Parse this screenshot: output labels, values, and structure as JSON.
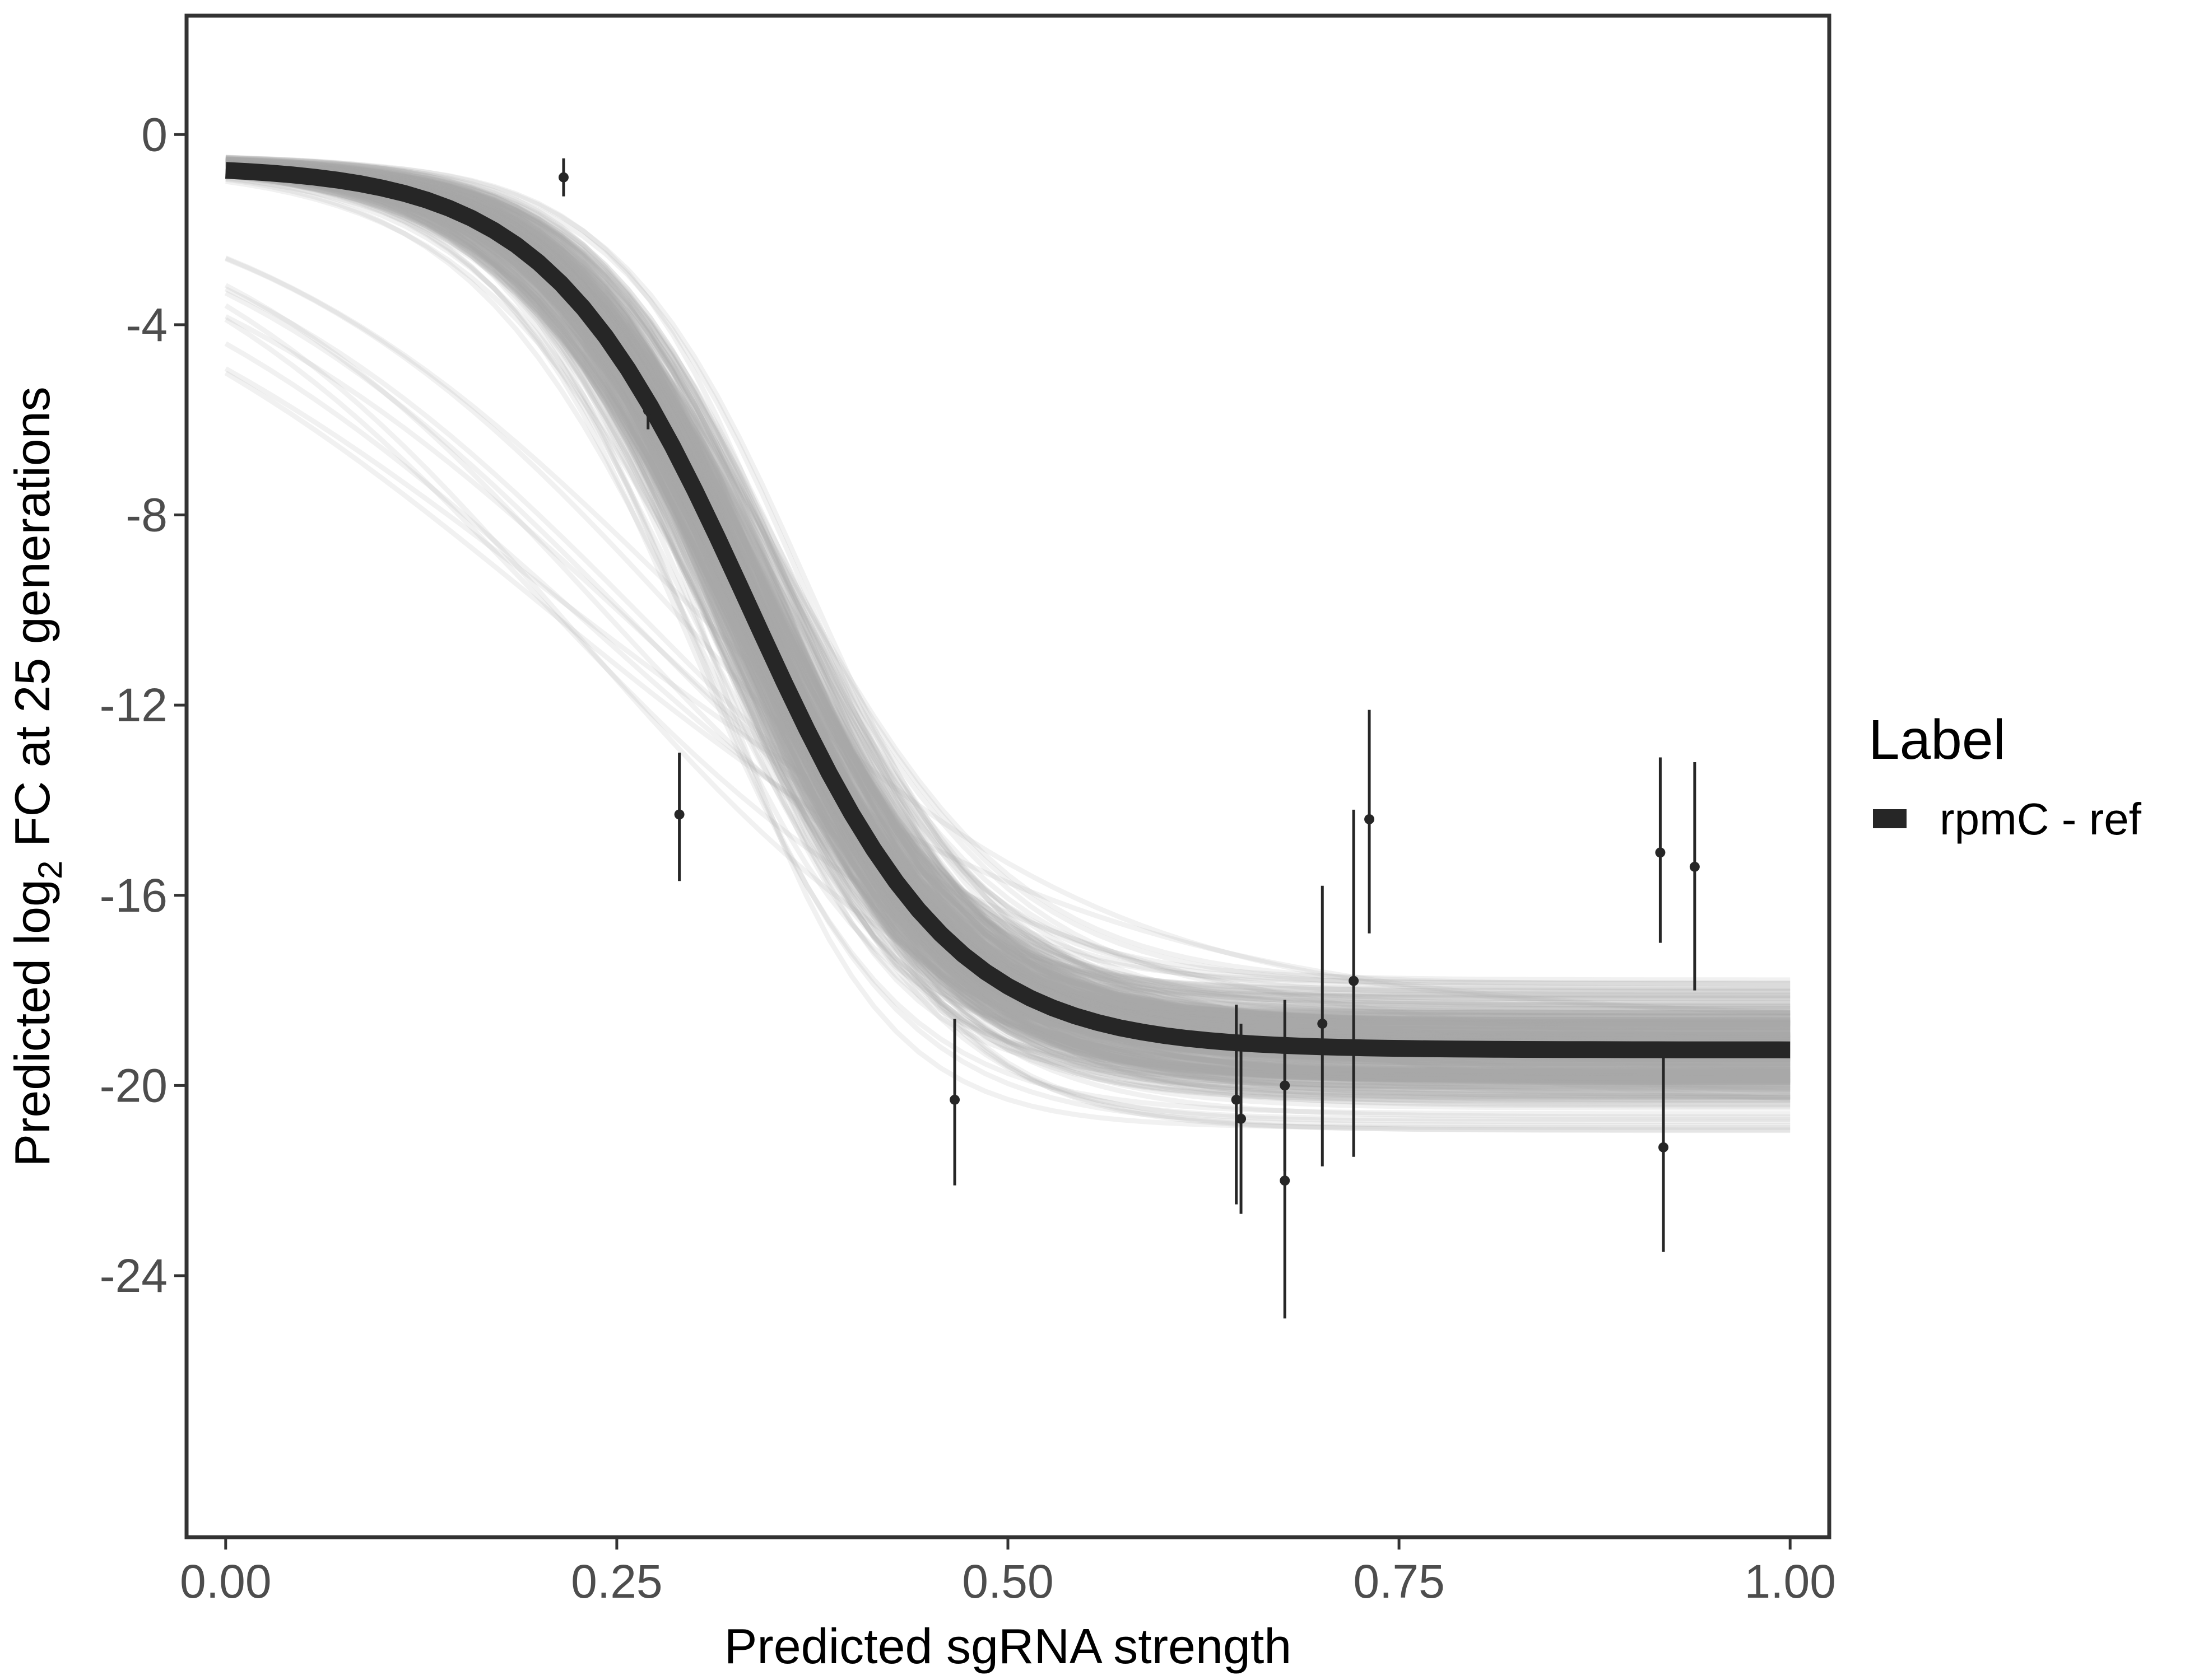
{
  "chart_data": {
    "type": "line",
    "title": "",
    "xlabel": "Predicted sgRNA strength",
    "ylabel": {
      "before": "Predicted  log",
      "subscript": "2",
      "after": " FC at 25 generations"
    },
    "xlim": [
      -0.025,
      1.025
    ],
    "ylim": [
      -29.5,
      2.5
    ],
    "x_ticks": [
      0,
      0.25,
      0.5,
      0.75,
      1.0
    ],
    "x_tick_labels": [
      "0.00",
      "0.25",
      "0.50",
      "0.75",
      "1.00"
    ],
    "y_ticks": [
      0,
      -4,
      -8,
      -12,
      -16,
      -20,
      -24
    ],
    "y_tick_labels": [
      "0",
      "-4",
      "-8",
      "-12",
      "-16",
      "-20",
      "-24"
    ],
    "grid": false,
    "legend": {
      "title": "Label",
      "position": "right",
      "entries": [
        {
          "label": "rpmC - ref",
          "color": "#262626"
        }
      ]
    },
    "fit_curve": {
      "name": "rpmC - ref",
      "model": "logistic",
      "top": -0.65,
      "bottom": -19.25,
      "midpoint": 0.335,
      "slope": 15.5,
      "color": "#262626"
    },
    "posterior_draws": {
      "count": 400,
      "color": "#a8a8a8",
      "top_range": [
        -0.5,
        -1.3
      ],
      "bottom_range": [
        -14.2,
        -24.3
      ],
      "midpoint_range": [
        0.2,
        0.48
      ],
      "slope_range": [
        5,
        24
      ]
    },
    "points": [
      {
        "x": 0.216,
        "y": -0.9,
        "lo": -1.3,
        "hi": -0.5
      },
      {
        "x": 0.27,
        "y": -5.8,
        "lo": -6.2,
        "hi": -5.4
      },
      {
        "x": 0.29,
        "y": -14.3,
        "lo": -15.7,
        "hi": -13.0
      },
      {
        "x": 0.466,
        "y": -20.3,
        "lo": -22.1,
        "hi": -18.6
      },
      {
        "x": 0.646,
        "y": -20.3,
        "lo": -22.5,
        "hi": -18.3
      },
      {
        "x": 0.649,
        "y": -20.7,
        "lo": -22.7,
        "hi": -18.7
      },
      {
        "x": 0.677,
        "y": -20.0,
        "lo": -21.8,
        "hi": -18.2
      },
      {
        "x": 0.677,
        "y": -22.0,
        "lo": -24.9,
        "hi": -19.2
      },
      {
        "x": 0.701,
        "y": -18.7,
        "lo": -21.7,
        "hi": -15.8
      },
      {
        "x": 0.721,
        "y": -17.8,
        "lo": -21.5,
        "hi": -14.2
      },
      {
        "x": 0.731,
        "y": -14.4,
        "lo": -16.8,
        "hi": -12.1
      },
      {
        "x": 0.917,
        "y": -15.1,
        "lo": -17.0,
        "hi": -13.1
      },
      {
        "x": 0.919,
        "y": -21.3,
        "lo": -23.5,
        "hi": -19.3
      },
      {
        "x": 0.939,
        "y": -15.4,
        "lo": -18.0,
        "hi": -13.2
      }
    ]
  }
}
